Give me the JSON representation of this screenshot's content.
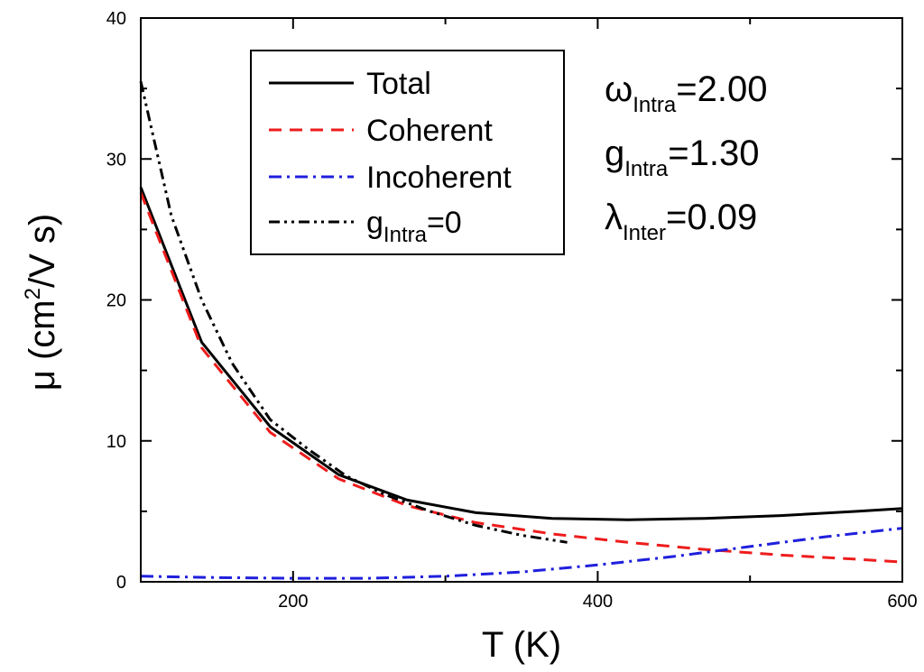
{
  "chart_data": {
    "type": "line",
    "xlabel": "T (K)",
    "ylabel_main": "μ (cm",
    "ylabel_sup": "2",
    "ylabel_tail": "/V s)",
    "xlim": [
      100,
      600
    ],
    "ylim": [
      0,
      40
    ],
    "x_ticks": [
      200,
      400,
      600
    ],
    "x_minor_ticks": [
      300,
      500
    ],
    "y_ticks": [
      0,
      10,
      20,
      30,
      40
    ],
    "y_minor_ticks": [
      5,
      15,
      25,
      35
    ],
    "series": [
      {
        "name": "Total",
        "color": "#000000",
        "style": "solid",
        "x": [
          100,
          140,
          185,
          230,
          275,
          320,
          370,
          420,
          470,
          520,
          570,
          600
        ],
        "y": [
          28.0,
          17.0,
          11.0,
          7.6,
          5.8,
          4.9,
          4.5,
          4.4,
          4.5,
          4.7,
          5.0,
          5.2
        ]
      },
      {
        "name": "Coherent",
        "color": "#ee1c1c",
        "style": "dash",
        "x": [
          100,
          140,
          185,
          230,
          275,
          320,
          370,
          420,
          470,
          520,
          570,
          600
        ],
        "y": [
          27.6,
          16.6,
          10.6,
          7.3,
          5.4,
          4.2,
          3.4,
          2.8,
          2.3,
          1.9,
          1.6,
          1.4
        ]
      },
      {
        "name": "Incoherent",
        "color": "#1f1fdd",
        "style": "dashdot",
        "x": [
          100,
          150,
          200,
          250,
          300,
          350,
          400,
          450,
          500,
          550,
          600
        ],
        "y": [
          0.4,
          0.3,
          0.25,
          0.25,
          0.4,
          0.7,
          1.2,
          1.8,
          2.5,
          3.2,
          3.8
        ]
      },
      {
        "name_main": "g",
        "name_sub": "Intra",
        "name_tail": "=0",
        "color": "#000000",
        "style": "dashdotdot",
        "x": [
          100,
          120,
          140,
          160,
          185,
          210,
          235,
          260,
          290,
          320,
          350,
          380
        ],
        "y": [
          35.5,
          26.0,
          20.0,
          15.5,
          11.5,
          9.4,
          7.5,
          6.2,
          5.0,
          4.0,
          3.3,
          2.8
        ]
      }
    ],
    "annotations": [
      {
        "main": "ω",
        "sub": "Intra",
        "tail": "=2.00"
      },
      {
        "main": "g",
        "sub": "Intra",
        "tail": "=1.30"
      },
      {
        "main": "λ",
        "sub": "Inter",
        "tail": "=0.09"
      }
    ]
  }
}
